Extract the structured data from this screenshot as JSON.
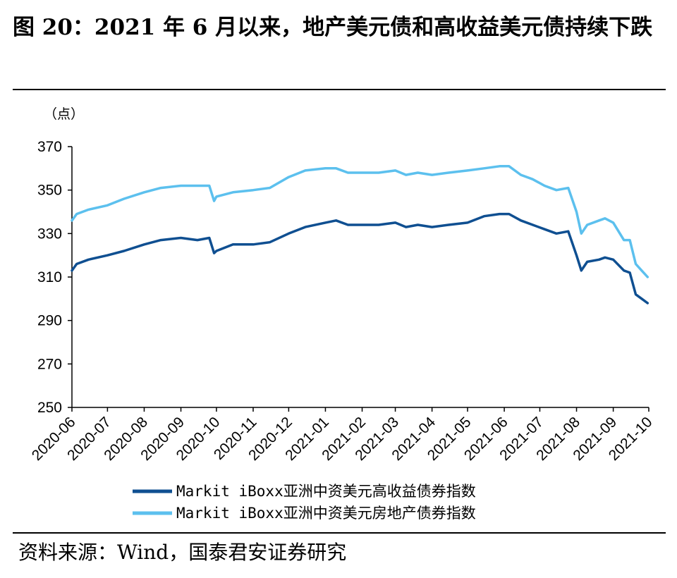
{
  "figure": {
    "title": "图 20：2021 年 6 月以来，地产美元债和高收益美元债持续下跌",
    "source": "资料来源：Wind，国泰君安证券研究"
  },
  "chart_data": {
    "type": "line",
    "unit_label": "（点）",
    "ylim": [
      250,
      370
    ],
    "yticks": [
      250,
      270,
      290,
      310,
      330,
      350,
      370
    ],
    "x_tick_labels": [
      "2020-06",
      "2020-07",
      "2020-08",
      "2020-09",
      "2020-10",
      "2020-11",
      "2020-12",
      "2021-01",
      "2021-02",
      "2021-03",
      "2021-04",
      "2021-05",
      "2021-06",
      "2021-07",
      "2021-08",
      "2021-09",
      "2021-10"
    ],
    "grid": false,
    "legend_position": "bottom",
    "series": [
      {
        "name": "Markit iBoxx亚洲中资美元高收益债券指数",
        "color": "#0f4f91",
        "x": [
          "2020-06-01",
          "2020-06-05",
          "2020-06-15",
          "2020-07-01",
          "2020-07-15",
          "2020-08-01",
          "2020-08-15",
          "2020-09-01",
          "2020-09-15",
          "2020-09-25",
          "2020-09-29",
          "2020-10-01",
          "2020-10-15",
          "2020-11-01",
          "2020-11-15",
          "2020-12-01",
          "2020-12-15",
          "2021-01-01",
          "2021-01-10",
          "2021-01-20",
          "2021-02-01",
          "2021-02-15",
          "2021-03-01",
          "2021-03-10",
          "2021-03-20",
          "2021-04-01",
          "2021-04-15",
          "2021-05-01",
          "2021-05-15",
          "2021-05-28",
          "2021-06-05",
          "2021-06-15",
          "2021-06-25",
          "2021-07-05",
          "2021-07-15",
          "2021-07-25",
          "2021-08-01",
          "2021-08-05",
          "2021-08-10",
          "2021-08-20",
          "2021-08-25",
          "2021-09-01",
          "2021-09-10",
          "2021-09-15",
          "2021-09-20",
          "2021-09-25",
          "2021-09-30"
        ],
        "values": [
          313,
          316,
          318,
          320,
          322,
          325,
          327,
          328,
          327,
          328,
          321,
          322,
          325,
          325,
          326,
          330,
          333,
          335,
          336,
          334,
          334,
          334,
          335,
          333,
          334,
          333,
          334,
          335,
          338,
          339,
          339,
          336,
          334,
          332,
          330,
          331,
          320,
          313,
          317,
          318,
          319,
          318,
          313,
          312,
          302,
          300,
          298
        ]
      },
      {
        "name": "Markit iBoxx亚洲中资美元房地产债券指数",
        "color": "#5cc0ee",
        "x": [
          "2020-06-01",
          "2020-06-05",
          "2020-06-15",
          "2020-07-01",
          "2020-07-15",
          "2020-08-01",
          "2020-08-15",
          "2020-09-01",
          "2020-09-15",
          "2020-09-25",
          "2020-09-29",
          "2020-10-01",
          "2020-10-15",
          "2020-11-01",
          "2020-11-15",
          "2020-12-01",
          "2020-12-15",
          "2021-01-01",
          "2021-01-10",
          "2021-01-20",
          "2021-02-01",
          "2021-02-15",
          "2021-03-01",
          "2021-03-10",
          "2021-03-20",
          "2021-04-01",
          "2021-04-15",
          "2021-05-01",
          "2021-05-15",
          "2021-05-28",
          "2021-06-05",
          "2021-06-15",
          "2021-06-25",
          "2021-07-05",
          "2021-07-15",
          "2021-07-25",
          "2021-08-01",
          "2021-08-05",
          "2021-08-10",
          "2021-08-20",
          "2021-08-25",
          "2021-09-01",
          "2021-09-10",
          "2021-09-15",
          "2021-09-20",
          "2021-09-25",
          "2021-09-30"
        ],
        "values": [
          336,
          339,
          341,
          343,
          346,
          349,
          351,
          352,
          352,
          352,
          345,
          347,
          349,
          350,
          351,
          356,
          359,
          360,
          360,
          358,
          358,
          358,
          359,
          357,
          358,
          357,
          358,
          359,
          360,
          361,
          361,
          357,
          355,
          352,
          350,
          351,
          340,
          330,
          334,
          336,
          337,
          335,
          327,
          327,
          316,
          313,
          310
        ]
      }
    ]
  }
}
